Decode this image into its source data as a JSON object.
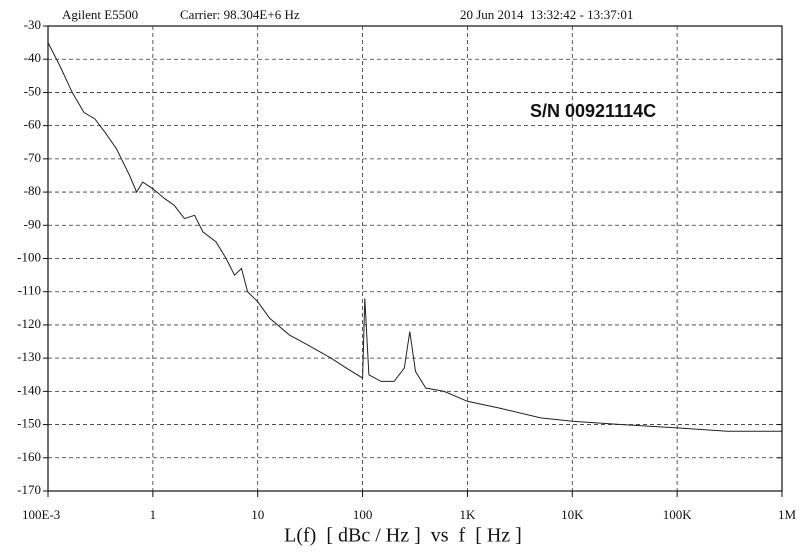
{
  "chart_data": {
    "type": "line",
    "instrument": "Agilent E5500",
    "carrier": "Carrier: 98.304E+6 Hz",
    "timestamp": "20 Jun 2014  13:32:42 - 13:37:01",
    "annotation": "S/N 00921114C",
    "x_label": "L(f)  [ dBc / Hz ]  vs  f  [ Hz ]",
    "log_x": true,
    "grid": true,
    "color": "#222222",
    "xlim": [
      0.1,
      1000000
    ],
    "xticks": [
      {
        "value": 0.1,
        "label": "100E-3"
      },
      1,
      10,
      100,
      {
        "value": 1000,
        "label": "1K"
      },
      {
        "value": 10000,
        "label": "10K"
      },
      {
        "value": 100000,
        "label": "100K"
      },
      {
        "value": 1000000,
        "label": "1M"
      }
    ],
    "ylim": [
      -170,
      -30
    ],
    "yticks": [
      -30,
      -40,
      -50,
      -60,
      -70,
      -80,
      -90,
      -100,
      -110,
      -120,
      -130,
      -140,
      -150,
      -160,
      -170
    ],
    "x": [
      0.1,
      0.13,
      0.17,
      0.22,
      0.28,
      0.35,
      0.45,
      0.6,
      0.7,
      0.8,
      1.0,
      1.3,
      1.6,
      2.0,
      2.5,
      3.0,
      4.0,
      5.0,
      6.0,
      7.0,
      8.0,
      10,
      13,
      20,
      30,
      50,
      70,
      100,
      105,
      115,
      150,
      200,
      250,
      282,
      320,
      400,
      600,
      1000,
      2000,
      5000,
      10000,
      30000,
      100000,
      300000,
      1000000
    ],
    "values": [
      -35,
      -42,
      -50,
      -56,
      -58,
      -62,
      -67,
      -75,
      -80,
      -77,
      -79,
      -82,
      -84,
      -88,
      -87,
      -92,
      -95,
      -100,
      -105,
      -103,
      -110,
      -113,
      -118,
      -123,
      -126,
      -130,
      -133,
      -136,
      -112,
      -135,
      -137,
      -137,
      -133,
      -122,
      -134,
      -139,
      -140,
      -143,
      -145,
      -148,
      -149,
      -150,
      -151,
      -152,
      -152
    ]
  }
}
